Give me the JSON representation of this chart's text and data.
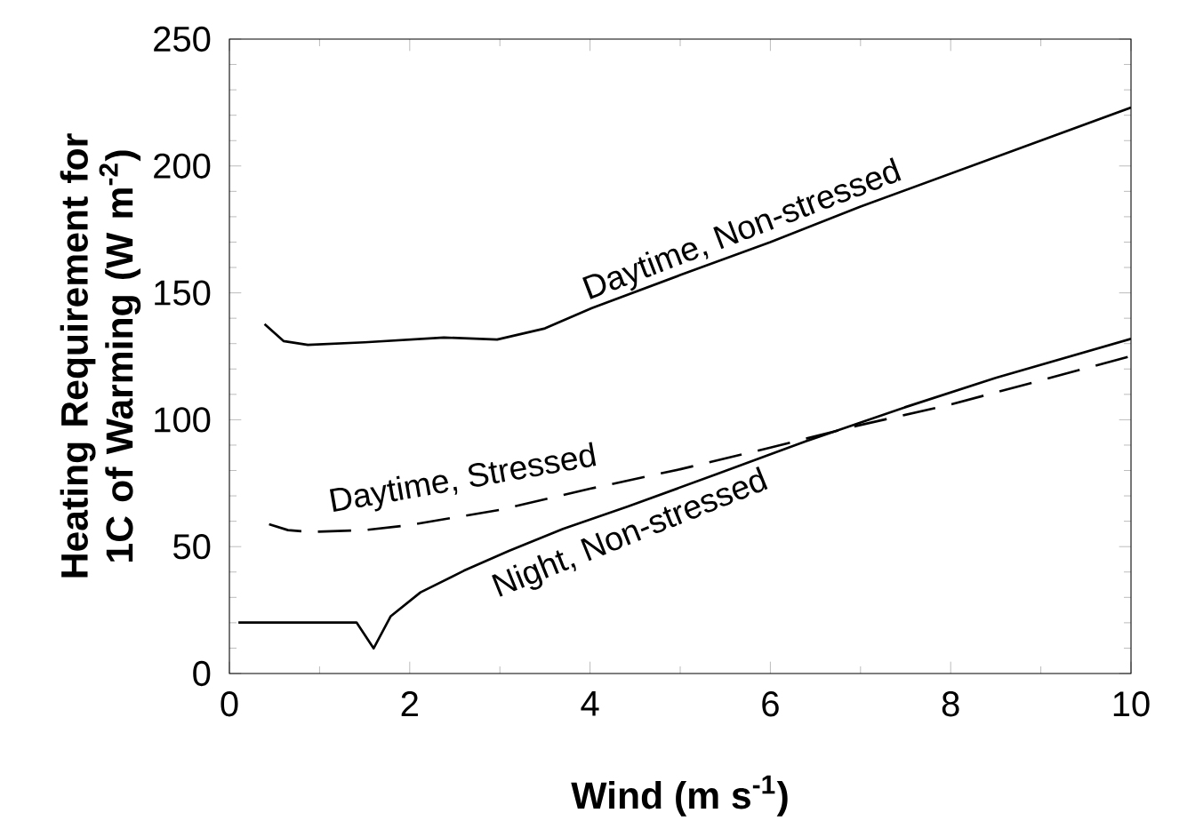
{
  "chart_data": {
    "type": "line",
    "xlabel": "Wind (m s$^{-1}$)",
    "ylabel": "Heating Requirement for 1C of Warming (W m$^{-2}$)",
    "xlim": [
      0,
      10
    ],
    "ylim": [
      0,
      250
    ],
    "xticks": [
      0,
      2,
      4,
      6,
      8,
      10
    ],
    "yticks": [
      0,
      50,
      100,
      150,
      200,
      250
    ],
    "marker": "none",
    "series": [
      {
        "color": "#000000",
        "line_style": "solid",
        "x": [
          0.39,
          0.6,
          0.87,
          1.5,
          2.38,
          2.97,
          3.5,
          4.02,
          5,
          6,
          7,
          8,
          9,
          10
        ],
        "values": [
          137.7,
          131,
          129.5,
          130.5,
          132.4,
          131.6,
          136,
          144,
          157,
          170,
          184,
          197,
          210,
          223
        ]
      },
      {
        "color": "#000000",
        "line_style": "dashed",
        "x": [
          0.44,
          0.65,
          0.9,
          1.5,
          2,
          3,
          4,
          5,
          6,
          6.92,
          8,
          9,
          10
        ],
        "values": [
          58.8,
          56.5,
          55.8,
          56.5,
          58.5,
          64.5,
          72.8,
          80.5,
          89,
          97.3,
          106,
          115.5,
          125.1
        ]
      },
      {
        "color": "#000000",
        "line_style": "solid",
        "x": [
          0.1,
          1.41,
          1.6,
          1.79,
          2.12,
          2.6,
          3.1,
          3.7,
          4.42,
          5.4,
          6.39,
          7.5,
          8.5,
          10
        ],
        "values": [
          20.1,
          20.1,
          9.9,
          22.6,
          32,
          40.5,
          48.3,
          57,
          65.8,
          78.5,
          91.5,
          105,
          116.5,
          131.9
        ]
      }
    ],
    "annotations": [
      "Daytime, Non-stressed",
      "Daytime, Stressed",
      "Night, Non-stressed"
    ]
  }
}
